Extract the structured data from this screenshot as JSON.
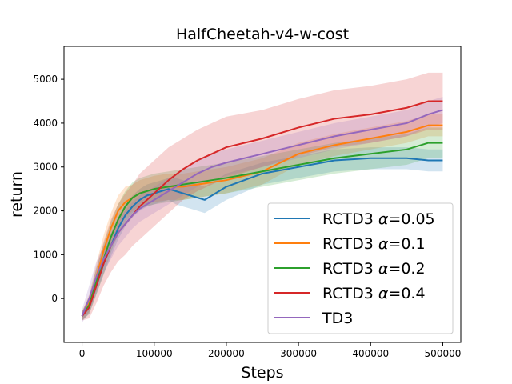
{
  "chart_data": {
    "type": "line",
    "title": "HalfCheetah-v4-w-cost",
    "xlabel": "Steps",
    "ylabel": "return",
    "xlim": [
      -25000,
      525000
    ],
    "ylim": [
      -1000,
      5750
    ],
    "xticks": [
      0,
      100000,
      200000,
      300000,
      400000,
      500000
    ],
    "xtick_labels": [
      "0",
      "100000",
      "200000",
      "300000",
      "400000",
      "500000"
    ],
    "yticks": [
      0,
      1000,
      2000,
      3000,
      4000,
      5000
    ],
    "ytick_labels": [
      "0",
      "1000",
      "2000",
      "3000",
      "4000",
      "5000"
    ],
    "grid": false,
    "legend_position": "lower-right",
    "series": [
      {
        "name": "RCTD3 α=0.05",
        "legend_prefix": "RCTD3 ",
        "legend_symbol": "α",
        "legend_suffix": "=0.05",
        "color": "#1f77b4",
        "x": [
          0,
          10000,
          20000,
          30000,
          40000,
          50000,
          60000,
          70000,
          80000,
          90000,
          100000,
          110000,
          120000,
          130000,
          140000,
          150000,
          160000,
          170000,
          180000,
          190000,
          200000,
          250000,
          300000,
          350000,
          400000,
          450000,
          480000,
          500000
        ],
        "y": [
          -400,
          -200,
          300,
          800,
          1200,
          1600,
          1900,
          2100,
          2250,
          2350,
          2400,
          2450,
          2500,
          2450,
          2400,
          2350,
          2300,
          2250,
          2350,
          2450,
          2550,
          2850,
          3000,
          3150,
          3200,
          3200,
          3150,
          3150
        ],
        "band": [
          100,
          150,
          200,
          250,
          250,
          250,
          250,
          250,
          250,
          250,
          250,
          250,
          250,
          300,
          300,
          300,
          300,
          300,
          300,
          300,
          300,
          250,
          250,
          250,
          250,
          250,
          250,
          250
        ]
      },
      {
        "name": "RCTD3 α=0.1",
        "legend_prefix": "RCTD3 ",
        "legend_symbol": "α",
        "legend_suffix": "=0.1",
        "color": "#ff7f0e",
        "x": [
          0,
          10000,
          20000,
          30000,
          40000,
          50000,
          60000,
          70000,
          80000,
          90000,
          100000,
          120000,
          140000,
          160000,
          180000,
          200000,
          250000,
          300000,
          350000,
          400000,
          450000,
          480000,
          500000
        ],
        "y": [
          -400,
          -100,
          500,
          1100,
          1600,
          2000,
          2200,
          2300,
          2400,
          2450,
          2500,
          2550,
          2550,
          2600,
          2650,
          2700,
          2900,
          3300,
          3500,
          3650,
          3800,
          3950,
          3950
        ],
        "band": [
          100,
          200,
          300,
          350,
          350,
          350,
          350,
          300,
          300,
          300,
          300,
          300,
          300,
          300,
          300,
          300,
          300,
          250,
          250,
          250,
          250,
          250,
          250
        ]
      },
      {
        "name": "RCTD3 α=0.2",
        "legend_prefix": "RCTD3 ",
        "legend_symbol": "α",
        "legend_suffix": "=0.2",
        "color": "#2ca02c",
        "x": [
          0,
          10000,
          20000,
          30000,
          40000,
          50000,
          60000,
          70000,
          80000,
          90000,
          100000,
          120000,
          140000,
          160000,
          180000,
          200000,
          250000,
          300000,
          350000,
          400000,
          450000,
          480000,
          500000
        ],
        "y": [
          -400,
          -150,
          400,
          900,
          1400,
          1800,
          2100,
          2300,
          2400,
          2450,
          2500,
          2550,
          2600,
          2650,
          2700,
          2750,
          2900,
          3050,
          3200,
          3300,
          3400,
          3550,
          3550
        ],
        "band": [
          100,
          200,
          300,
          350,
          350,
          350,
          350,
          350,
          350,
          350,
          350,
          350,
          350,
          350,
          350,
          350,
          350,
          350,
          350,
          350,
          350,
          350,
          350
        ]
      },
      {
        "name": "RCTD3 α=0.4",
        "legend_prefix": "RCTD3 ",
        "legend_symbol": "α",
        "legend_suffix": "=0.4",
        "color": "#d62728",
        "x": [
          0,
          10000,
          20000,
          30000,
          40000,
          50000,
          60000,
          70000,
          80000,
          90000,
          100000,
          120000,
          140000,
          160000,
          180000,
          200000,
          250000,
          300000,
          350000,
          400000,
          450000,
          480000,
          500000
        ],
        "y": [
          -400,
          -200,
          300,
          800,
          1200,
          1500,
          1700,
          1900,
          2100,
          2250,
          2400,
          2700,
          2950,
          3150,
          3300,
          3450,
          3650,
          3900,
          4100,
          4200,
          4350,
          4500,
          4500
        ],
        "band": [
          100,
          250,
          400,
          500,
          600,
          650,
          700,
          700,
          750,
          750,
          750,
          750,
          700,
          700,
          700,
          700,
          650,
          650,
          650,
          650,
          650,
          650,
          650
        ]
      },
      {
        "name": "TD3",
        "legend_prefix": "TD3",
        "legend_symbol": "",
        "legend_suffix": "",
        "color": "#9467bd",
        "x": [
          0,
          10000,
          20000,
          30000,
          40000,
          50000,
          60000,
          70000,
          80000,
          90000,
          100000,
          120000,
          140000,
          160000,
          180000,
          200000,
          250000,
          300000,
          350000,
          400000,
          450000,
          480000,
          500000
        ],
        "y": [
          -400,
          0,
          500,
          900,
          1200,
          1500,
          1700,
          1900,
          2050,
          2150,
          2250,
          2450,
          2650,
          2850,
          3000,
          3100,
          3300,
          3500,
          3700,
          3850,
          4000,
          4200,
          4300
        ],
        "band": [
          150,
          300,
          350,
          300,
          300,
          300,
          300,
          300,
          300,
          300,
          300,
          300,
          300,
          300,
          300,
          300,
          300,
          300,
          300,
          300,
          300,
          300,
          300
        ]
      }
    ]
  }
}
